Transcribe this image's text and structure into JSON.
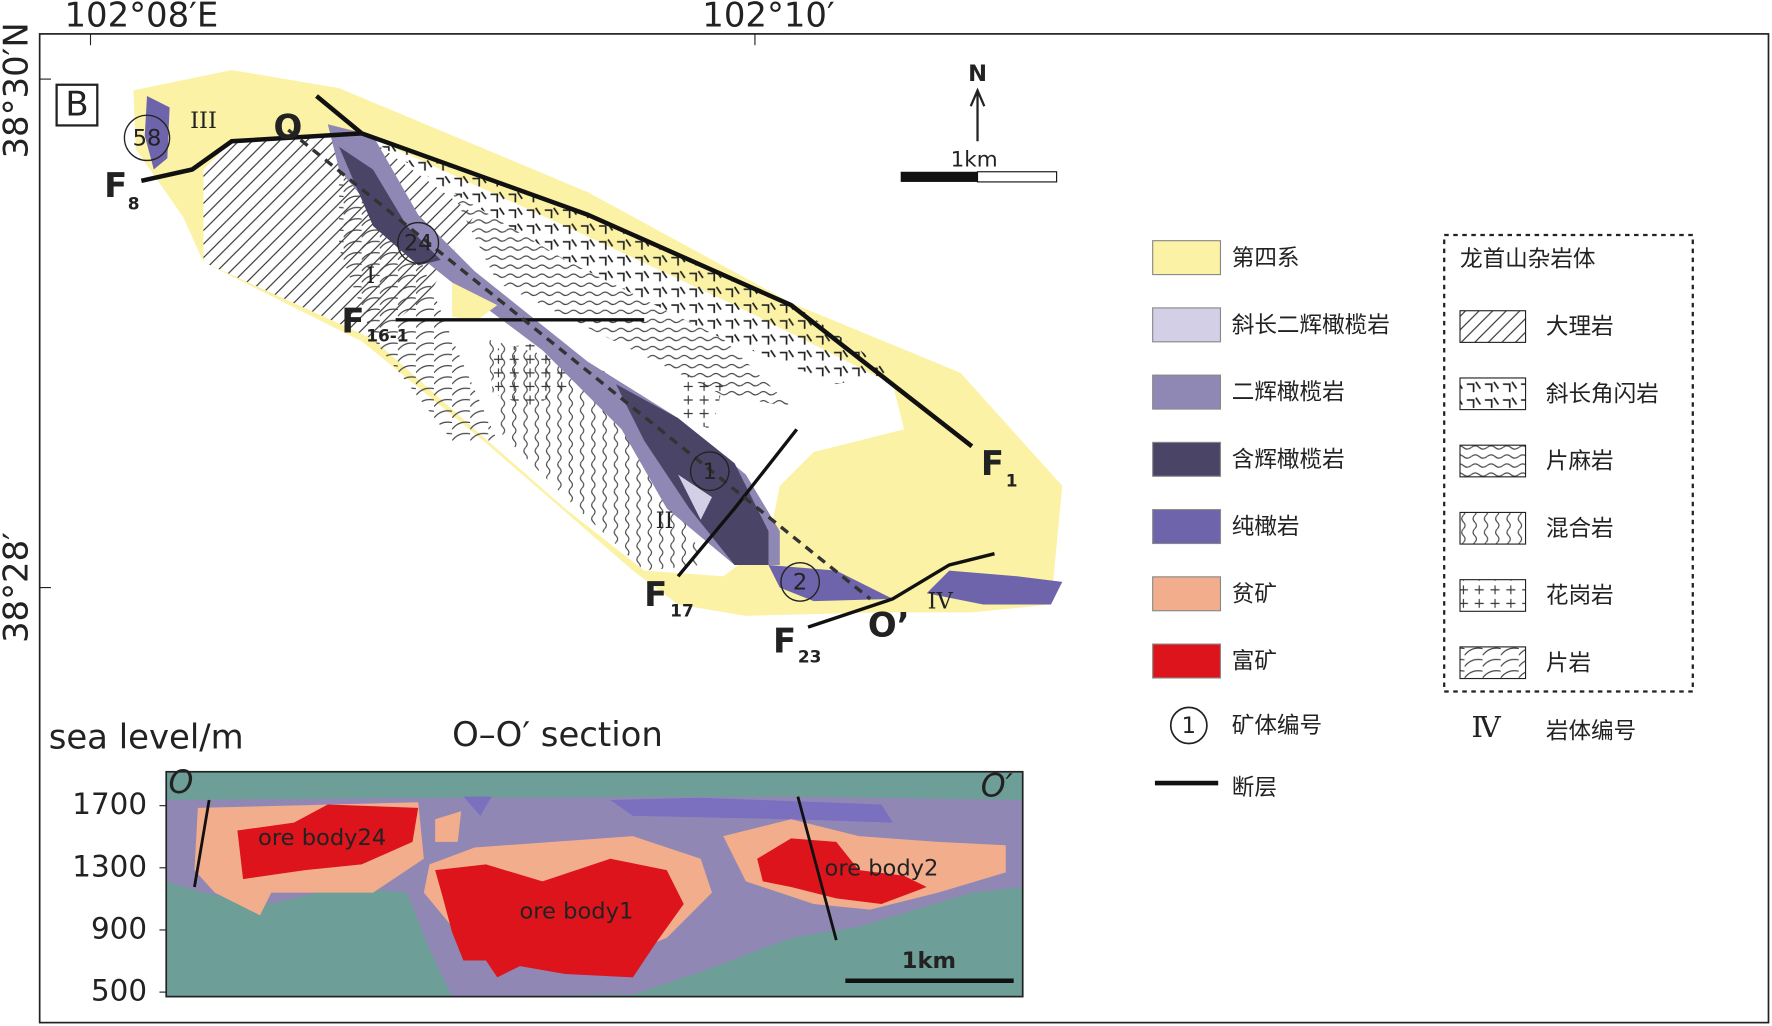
{
  "map": {
    "panel_label": "B",
    "coordinates": {
      "top": [
        "102°08′E",
        "102°10′"
      ],
      "left": [
        "38°30′N",
        "38°28′"
      ]
    },
    "north": "N",
    "scale_bar": "1km",
    "rock_body_numbers": [
      "III",
      "I",
      "II",
      "IV"
    ],
    "ore_body_numbers": [
      "58",
      "24",
      "1",
      "2"
    ],
    "faults": [
      {
        "letter": "F",
        "sub": "8"
      },
      {
        "letter": "F",
        "sub": "16-1"
      },
      {
        "letter": "F",
        "sub": "1"
      },
      {
        "letter": "F",
        "sub": "17"
      },
      {
        "letter": "F",
        "sub": "23"
      }
    ],
    "section_line": [
      "O",
      "O’"
    ]
  },
  "legend": {
    "items": [
      {
        "label": "第四系",
        "color": "#fbf2a5"
      },
      {
        "label": "斜长二辉橄榄岩",
        "color": "#d3cfe6"
      },
      {
        "label": "二辉橄榄岩",
        "color": "#8f88b4"
      },
      {
        "label": "含辉橄榄岩",
        "color": "#4a4566"
      },
      {
        "label": "纯橄岩",
        "color": "#6e64ab"
      },
      {
        "label": "贫矿",
        "color": "#f2ae8c"
      },
      {
        "label": "富矿",
        "color": "#de141c"
      }
    ],
    "complex": {
      "title": "龙首山杂岩体",
      "items": [
        "大理岩",
        "斜长角闪岩",
        "片麻岩",
        "混合岩",
        "花岗岩",
        "片岩"
      ]
    },
    "ore_symbol": {
      "symbol": "1",
      "label": "矿体编号"
    },
    "rock_symbol": {
      "symbol": "Ⅳ",
      "label": "岩体编号"
    },
    "fault": "断层"
  },
  "section": {
    "axis_label": "sea level/m",
    "title": "O–O′ section",
    "yticks": [
      1700,
      1300,
      900,
      500
    ],
    "ends": [
      "O",
      "O′"
    ],
    "ore_bodies": [
      "ore body24",
      "ore body1",
      "ore body2"
    ],
    "scale_bar": "1km"
  }
}
